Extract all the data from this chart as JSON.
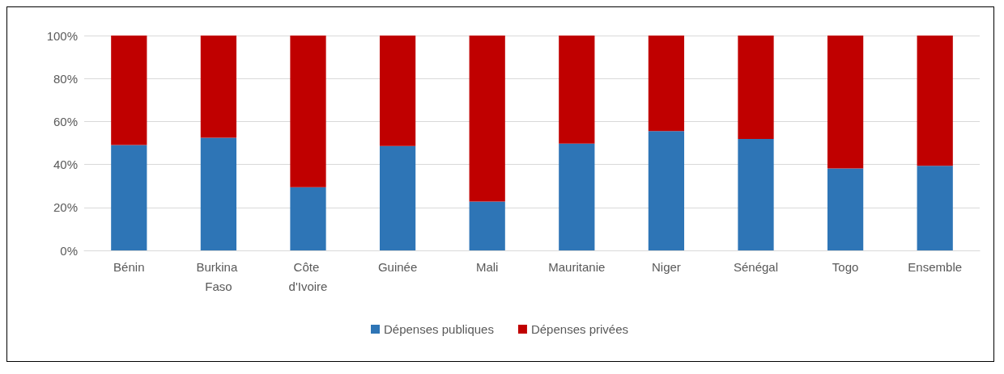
{
  "chart_data": {
    "type": "bar",
    "stacked": true,
    "categories": [
      "Bénin",
      "Burkina Faso",
      "Côte d'Ivoire",
      "Guinée",
      "Mali",
      "Mauritanie",
      "Niger",
      "Sénégal",
      "Togo",
      "Ensemble"
    ],
    "series": [
      {
        "name": "Dépenses publiques",
        "color": "#2e75b6",
        "values": [
          49.1,
          52.4,
          29.4,
          48.6,
          22.7,
          49.7,
          55.5,
          51.9,
          38.2,
          39.4
        ]
      },
      {
        "name": "Dépenses privées",
        "color": "#c00000",
        "values": [
          50.9,
          47.6,
          70.6,
          51.4,
          77.3,
          50.3,
          44.5,
          48.1,
          61.8,
          60.6
        ]
      }
    ],
    "ylim": [
      0,
      100
    ],
    "yticks": [
      {
        "value": 0,
        "label": "0%"
      },
      {
        "value": 20,
        "label": "20%"
      },
      {
        "value": 40,
        "label": "40%"
      },
      {
        "value": 60,
        "label": "60%"
      },
      {
        "value": 80,
        "label": "80%"
      },
      {
        "value": 100,
        "label": "100%"
      }
    ],
    "grid": "y",
    "legend": "bottom"
  }
}
